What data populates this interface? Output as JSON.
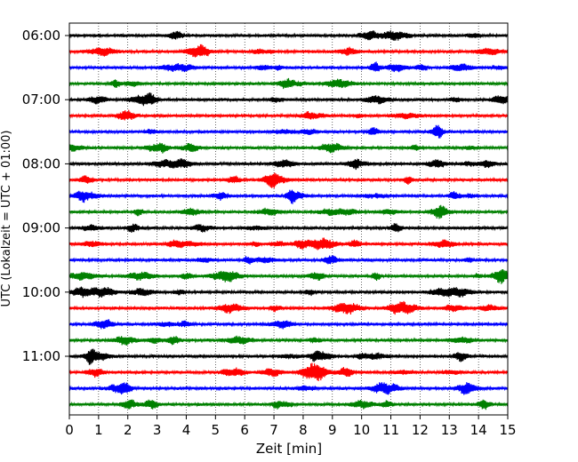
{
  "chart_data": {
    "type": "line",
    "title": "",
    "xlabel": "Zeit  [min]",
    "ylabel": "UTC (Lokalzeit = UTC + 01:00)",
    "xlim": [
      0,
      15
    ],
    "x_ticks": [
      "0",
      "1",
      "2",
      "3",
      "4",
      "5",
      "6",
      "7",
      "8",
      "9",
      "10",
      "11",
      "12",
      "13",
      "14",
      "15"
    ],
    "y_ticks": [
      "06:00",
      "07:00",
      "08:00",
      "09:00",
      "10:00",
      "11:00"
    ],
    "trace_interval_min": 15,
    "grid": "vertical dotted at each minute",
    "series_colors": [
      "#000000",
      "#ff0000",
      "#0000ff",
      "#008000"
    ],
    "traces": [
      {
        "start": "06:00",
        "color": "#000000"
      },
      {
        "start": "06:15",
        "color": "#ff0000"
      },
      {
        "start": "06:30",
        "color": "#0000ff"
      },
      {
        "start": "06:45",
        "color": "#008000"
      },
      {
        "start": "07:00",
        "color": "#000000"
      },
      {
        "start": "07:15",
        "color": "#ff0000"
      },
      {
        "start": "07:30",
        "color": "#0000ff"
      },
      {
        "start": "07:45",
        "color": "#008000"
      },
      {
        "start": "08:00",
        "color": "#000000"
      },
      {
        "start": "08:15",
        "color": "#ff0000"
      },
      {
        "start": "08:30",
        "color": "#0000ff"
      },
      {
        "start": "08:45",
        "color": "#008000"
      },
      {
        "start": "09:00",
        "color": "#000000"
      },
      {
        "start": "09:15",
        "color": "#ff0000"
      },
      {
        "start": "09:30",
        "color": "#0000ff"
      },
      {
        "start": "09:45",
        "color": "#008000"
      },
      {
        "start": "10:00",
        "color": "#000000"
      },
      {
        "start": "10:15",
        "color": "#ff0000"
      },
      {
        "start": "10:30",
        "color": "#0000ff"
      },
      {
        "start": "10:45",
        "color": "#008000"
      },
      {
        "start": "11:00",
        "color": "#000000"
      },
      {
        "start": "11:15",
        "color": "#ff0000"
      },
      {
        "start": "11:30",
        "color": "#0000ff"
      },
      {
        "start": "11:45",
        "color": "#008000"
      }
    ]
  }
}
